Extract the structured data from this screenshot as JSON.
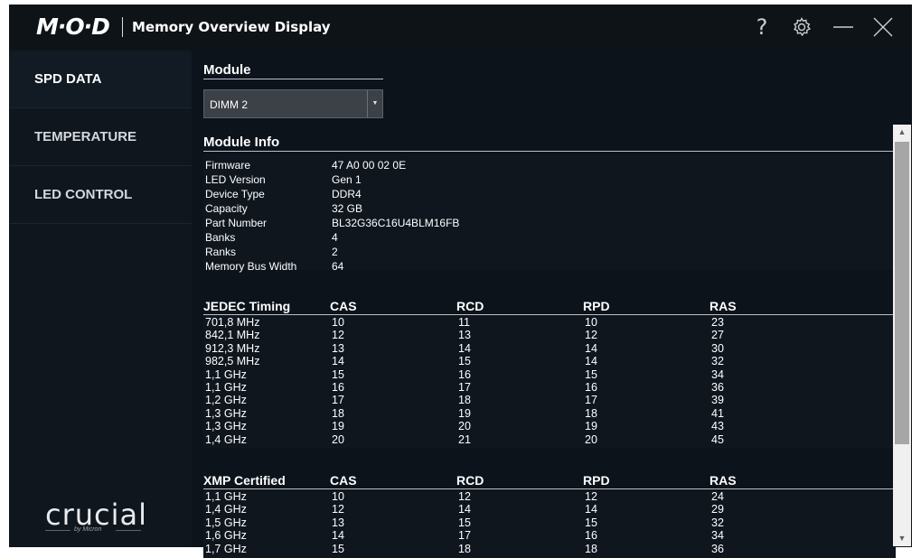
{
  "app": {
    "logo": "M·O·D",
    "title": "Memory Overview Display"
  },
  "titlebar": {
    "help_label": "?",
    "icons": [
      "help-icon",
      "gear-icon",
      "minimize-icon",
      "close-icon"
    ]
  },
  "sidebar": {
    "items": [
      {
        "label": "SPD DATA",
        "active": true
      },
      {
        "label": "TEMPERATURE",
        "active": false
      },
      {
        "label": "LED CONTROL",
        "active": false
      }
    ],
    "brand": "crucial",
    "brand_sub": "by Micron"
  },
  "module": {
    "heading": "Module",
    "selected": "DIMM 2"
  },
  "module_info": {
    "heading": "Module Info",
    "rows": [
      {
        "k": "Firmware",
        "v": "47 A0 00 02 0E"
      },
      {
        "k": "LED Version",
        "v": "Gen 1"
      },
      {
        "k": "Device Type",
        "v": "DDR4"
      },
      {
        "k": "Capacity",
        "v": "32 GB"
      },
      {
        "k": "Part Number",
        "v": "BL32G36C16U4BLM16FB"
      },
      {
        "k": "Banks",
        "v": "4"
      },
      {
        "k": "Ranks",
        "v": "2"
      },
      {
        "k": "Memory Bus Width",
        "v": "64"
      }
    ]
  },
  "jedec": {
    "headers": [
      "JEDEC Timing",
      "CAS",
      "RCD",
      "RPD",
      "RAS"
    ],
    "rows": [
      [
        "701,8 MHz",
        "10",
        "11",
        "10",
        "23"
      ],
      [
        "842,1 MHz",
        "12",
        "13",
        "12",
        "27"
      ],
      [
        "912,3 MHz",
        "13",
        "14",
        "14",
        "30"
      ],
      [
        "982,5 MHz",
        "14",
        "15",
        "14",
        "32"
      ],
      [
        "1,1 GHz",
        "15",
        "16",
        "15",
        "34"
      ],
      [
        "1,1 GHz",
        "16",
        "17",
        "16",
        "36"
      ],
      [
        "1,2 GHz",
        "17",
        "18",
        "17",
        "39"
      ],
      [
        "1,3 GHz",
        "18",
        "19",
        "18",
        "41"
      ],
      [
        "1,3 GHz",
        "19",
        "20",
        "19",
        "43"
      ],
      [
        "1,4 GHz",
        "20",
        "21",
        "20",
        "45"
      ]
    ]
  },
  "xmp": {
    "headers": [
      "XMP Certified",
      "CAS",
      "RCD",
      "RPD",
      "RAS"
    ],
    "rows": [
      [
        "1,1 GHz",
        "10",
        "12",
        "12",
        "24"
      ],
      [
        "1,4 GHz",
        "12",
        "14",
        "14",
        "29"
      ],
      [
        "1,5 GHz",
        "13",
        "15",
        "15",
        "32"
      ],
      [
        "1,6 GHz",
        "14",
        "17",
        "16",
        "34"
      ],
      [
        "1,7 GHz",
        "15",
        "18",
        "18",
        "36"
      ]
    ]
  },
  "scrollbar": {
    "up_icon": "chevron-up-icon",
    "down_icon": "chevron-down-icon"
  }
}
